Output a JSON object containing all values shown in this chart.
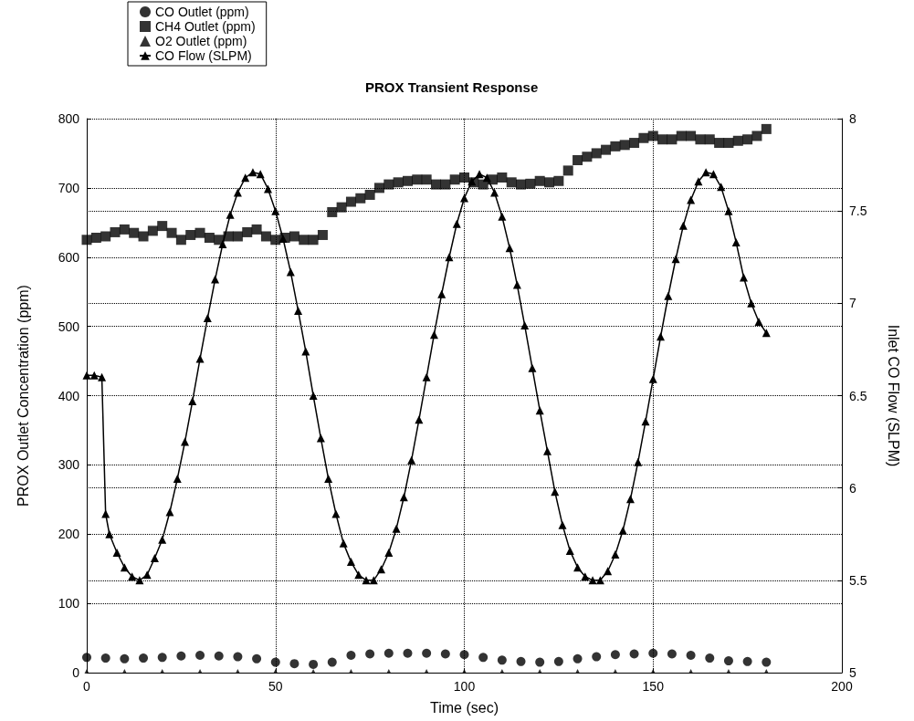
{
  "chart_data": {
    "type": "scatter",
    "title": "PROX Transient Response",
    "xlabel": "Time (sec)",
    "ylabel": "PROX Outlet Concentration (ppm)",
    "y2label": "Inlet CO Flow (SLPM)",
    "xlim": [
      0,
      200
    ],
    "xticks": [
      0,
      50,
      100,
      150,
      200
    ],
    "ylim": [
      0,
      800
    ],
    "yticks": [
      0,
      100,
      200,
      300,
      400,
      500,
      600,
      700,
      800
    ],
    "y2lim": [
      5,
      8
    ],
    "y2ticks": [
      5,
      5.5,
      6,
      6.5,
      7,
      7.5,
      8
    ],
    "grid": true,
    "legend": "top left",
    "series": [
      {
        "name": "CO Outlet (ppm)",
        "color": "#000000",
        "marker": "circle",
        "x": [
          0,
          5,
          10,
          15,
          20,
          25,
          30,
          35,
          40,
          45,
          50,
          55,
          60,
          65,
          70,
          75,
          80,
          85,
          90,
          95,
          100,
          105,
          110,
          115,
          120,
          125,
          130,
          135,
          140,
          145,
          150,
          155,
          160,
          165,
          170,
          175,
          180
        ],
        "values": [
          22,
          21,
          20,
          21,
          22,
          24,
          25,
          24,
          23,
          20,
          15,
          13,
          12,
          15,
          25,
          27,
          28,
          28,
          28,
          27,
          26,
          22,
          18,
          16,
          15,
          16,
          20,
          23,
          26,
          27,
          28,
          27,
          25,
          21,
          17,
          16,
          15
        ]
      },
      {
        "name": "CH4 Outlet (ppm)",
        "color": "#000000",
        "marker": "square",
        "x": [
          0,
          2.5,
          5,
          7.5,
          10,
          12.5,
          15,
          17.5,
          20,
          22.5,
          25,
          27.5,
          30,
          32.5,
          35,
          37.5,
          40,
          42.5,
          45,
          47.5,
          50,
          52.5,
          55,
          57.5,
          60,
          62.5,
          65,
          67.5,
          70,
          72.5,
          75,
          77.5,
          80,
          82.5,
          85,
          87.5,
          90,
          92.5,
          95,
          97.5,
          100,
          102.5,
          105,
          107.5,
          110,
          112.5,
          115,
          117.5,
          120,
          122.5,
          125,
          127.5,
          130,
          132.5,
          135,
          137.5,
          140,
          142.5,
          145,
          147.5,
          150,
          152.5,
          155,
          157.5,
          160,
          162.5,
          165,
          167.5,
          170,
          172.5,
          175,
          177.5,
          180
        ],
        "values": [
          625,
          628,
          630,
          636,
          640,
          635,
          630,
          638,
          645,
          635,
          625,
          632,
          635,
          628,
          625,
          630,
          630,
          636,
          640,
          630,
          625,
          628,
          630,
          625,
          625,
          632,
          665,
          672,
          680,
          685,
          690,
          700,
          705,
          708,
          710,
          712,
          712,
          705,
          705,
          712,
          715,
          708,
          705,
          712,
          715,
          708,
          705,
          706,
          710,
          708,
          710,
          725,
          740,
          745,
          750,
          755,
          760,
          762,
          765,
          772,
          775,
          770,
          770,
          775,
          775,
          770,
          770,
          765,
          765,
          768,
          770,
          775,
          785
        ]
      },
      {
        "name": "O2 Outlet (ppm)",
        "color": "#000000",
        "marker": "triangle",
        "x": [
          0,
          10,
          20,
          30,
          40,
          50,
          60,
          70,
          80,
          90,
          100,
          110,
          120,
          130,
          140,
          150,
          160,
          170,
          180
        ],
        "values": [
          2,
          2,
          2,
          2,
          2,
          2,
          2,
          2,
          2,
          2,
          2,
          2,
          2,
          2,
          2,
          2,
          2,
          2,
          2
        ]
      },
      {
        "name": "CO Flow (SLPM)",
        "type": "line",
        "axis": "y2",
        "color": "#000000",
        "marker": "triangle",
        "x": [
          0,
          2,
          4,
          5,
          6,
          8,
          10,
          12,
          14,
          16,
          18,
          20,
          22,
          24,
          26,
          28,
          30,
          32,
          34,
          36,
          38,
          40,
          42,
          44,
          46,
          48,
          50,
          52,
          54,
          56,
          58,
          60,
          62,
          64,
          66,
          68,
          70,
          72,
          74,
          76,
          78,
          80,
          82,
          84,
          86,
          88,
          90,
          92,
          94,
          96,
          98,
          100,
          102,
          104,
          106,
          108,
          110,
          112,
          114,
          116,
          118,
          120,
          122,
          124,
          126,
          128,
          130,
          132,
          134,
          136,
          138,
          140,
          142,
          144,
          146,
          148,
          150,
          152,
          154,
          156,
          158,
          160,
          162,
          164,
          166,
          168,
          170,
          172,
          174,
          176,
          178,
          180
        ],
        "values": [
          6.61,
          6.61,
          6.6,
          5.86,
          5.75,
          5.65,
          5.57,
          5.52,
          5.5,
          5.53,
          5.62,
          5.72,
          5.87,
          6.05,
          6.25,
          6.47,
          6.7,
          6.92,
          7.13,
          7.32,
          7.48,
          7.6,
          7.68,
          7.71,
          7.7,
          7.62,
          7.5,
          7.35,
          7.17,
          6.96,
          6.74,
          6.5,
          6.27,
          6.05,
          5.86,
          5.7,
          5.6,
          5.53,
          5.5,
          5.5,
          5.56,
          5.65,
          5.78,
          5.95,
          6.15,
          6.37,
          6.6,
          6.83,
          7.05,
          7.25,
          7.43,
          7.57,
          7.66,
          7.7,
          7.68,
          7.6,
          7.47,
          7.3,
          7.1,
          6.88,
          6.65,
          6.42,
          6.2,
          5.98,
          5.8,
          5.66,
          5.57,
          5.52,
          5.5,
          5.5,
          5.55,
          5.64,
          5.77,
          5.94,
          6.14,
          6.36,
          6.59,
          6.82,
          7.04,
          7.24,
          7.42,
          7.56,
          7.66,
          7.71,
          7.7,
          7.63,
          7.5,
          7.33,
          7.14,
          7.0,
          6.9,
          6.84
        ]
      }
    ]
  }
}
